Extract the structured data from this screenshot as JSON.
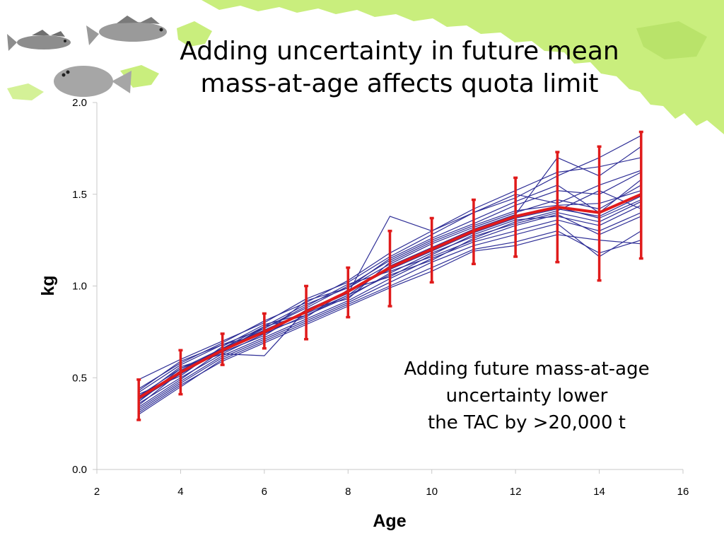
{
  "slide": {
    "title_line1": "Adding uncertainty in future mean",
    "title_line2": "mass-at-age affects quota limit",
    "annotation_lines": [
      "Adding future mass-at-age",
      "uncertainty lower",
      "the TAC by >20,000 t"
    ],
    "decorations": [
      "fish-pollock-icon",
      "fish-cod-icon",
      "flatfish-halibut-icon",
      "alaska-map-background"
    ]
  },
  "chart_data": {
    "type": "line",
    "xlabel": "Age",
    "ylabel": "kg",
    "xlim": [
      2,
      16
    ],
    "ylim": [
      0,
      2.0
    ],
    "xticks": [
      2,
      4,
      6,
      8,
      10,
      12,
      14,
      16
    ],
    "yticks": [
      "0.0",
      "0.5",
      "1.0",
      "1.5",
      "2.0"
    ],
    "grid": false,
    "legend": "none",
    "colors": {
      "mean": "#e01b1b",
      "realizations": "#2e2e96",
      "axis": "#c8c8c8"
    },
    "mean": {
      "x": [
        3,
        4,
        5,
        6,
        7,
        8,
        9,
        10,
        11,
        12,
        13,
        14,
        15
      ],
      "y": [
        0.39,
        0.53,
        0.65,
        0.75,
        0.86,
        0.97,
        1.1,
        1.2,
        1.3,
        1.38,
        1.43,
        1.4,
        1.5
      ],
      "lower": [
        0.27,
        0.41,
        0.57,
        0.66,
        0.71,
        0.83,
        0.89,
        1.02,
        1.12,
        1.16,
        1.13,
        1.03,
        1.15
      ],
      "upper": [
        0.49,
        0.65,
        0.74,
        0.85,
        1.0,
        1.1,
        1.3,
        1.37,
        1.47,
        1.59,
        1.73,
        1.76,
        1.84
      ]
    },
    "series": [
      {
        "x": [
          3,
          4,
          5,
          6,
          7,
          8,
          9,
          10,
          11,
          12,
          13,
          14,
          15
        ],
        "y": [
          0.4,
          0.55,
          0.66,
          0.78,
          0.9,
          0.99,
          1.12,
          1.23,
          1.32,
          1.4,
          1.47,
          1.42,
          1.55
        ]
      },
      {
        "x": [
          3,
          4,
          5,
          6,
          7,
          8,
          9,
          10,
          11,
          12,
          13,
          14,
          15
        ],
        "y": [
          0.36,
          0.5,
          0.63,
          0.74,
          0.84,
          0.94,
          1.07,
          1.18,
          1.27,
          1.34,
          1.4,
          1.35,
          1.46
        ]
      },
      {
        "x": [
          3,
          4,
          5,
          6,
          7,
          8,
          9,
          10,
          11,
          12,
          13,
          14,
          15
        ],
        "y": [
          0.42,
          0.57,
          0.68,
          0.77,
          0.88,
          1.0,
          1.14,
          1.25,
          1.34,
          1.44,
          1.52,
          1.5,
          1.62
        ]
      },
      {
        "x": [
          3,
          4,
          5,
          6,
          7,
          8,
          9,
          10,
          11,
          12,
          13,
          14,
          15
        ],
        "y": [
          0.33,
          0.48,
          0.62,
          0.72,
          0.82,
          0.92,
          1.04,
          1.15,
          1.24,
          1.3,
          1.36,
          1.3,
          1.4
        ]
      },
      {
        "x": [
          3,
          4,
          5,
          6,
          7,
          8,
          9,
          10,
          11,
          12,
          13,
          14,
          15
        ],
        "y": [
          0.49,
          0.6,
          0.7,
          0.8,
          0.93,
          1.02,
          1.16,
          1.28,
          1.4,
          1.48,
          1.6,
          1.7,
          1.82
        ]
      },
      {
        "x": [
          3,
          4,
          5,
          6,
          7,
          8,
          9,
          10,
          11,
          12,
          13,
          14,
          15
        ],
        "y": [
          0.3,
          0.45,
          0.6,
          0.7,
          0.8,
          0.9,
          1.0,
          1.1,
          1.2,
          1.24,
          1.3,
          1.18,
          1.25
        ]
      },
      {
        "x": [
          3,
          4,
          5,
          6,
          7,
          8,
          9,
          10,
          11,
          12,
          13,
          14,
          15
        ],
        "y": [
          0.38,
          0.52,
          0.65,
          0.76,
          0.86,
          0.96,
          1.38,
          1.3,
          1.4,
          1.5,
          1.45,
          1.55,
          1.63
        ]
      },
      {
        "x": [
          3,
          4,
          5,
          6,
          7,
          8,
          9,
          10,
          11,
          12,
          13,
          14,
          15
        ],
        "y": [
          0.35,
          0.53,
          0.64,
          0.73,
          0.87,
          0.97,
          1.09,
          1.19,
          1.29,
          1.37,
          1.42,
          1.38,
          1.49
        ]
      },
      {
        "x": [
          3,
          4,
          5,
          6,
          7,
          8,
          9,
          10,
          11,
          12,
          13,
          14,
          15
        ],
        "y": [
          0.41,
          0.51,
          0.67,
          0.79,
          0.85,
          0.95,
          1.11,
          1.21,
          1.31,
          1.39,
          1.7,
          1.6,
          1.76
        ]
      },
      {
        "x": [
          3,
          4,
          5,
          6,
          7,
          8,
          9,
          10,
          11,
          12,
          13,
          14,
          15
        ],
        "y": [
          0.37,
          0.54,
          0.66,
          0.75,
          0.83,
          0.98,
          1.05,
          1.17,
          1.28,
          1.36,
          1.38,
          1.33,
          1.44
        ]
      },
      {
        "x": [
          3,
          4,
          5,
          6,
          7,
          8,
          9,
          10,
          11,
          12,
          13,
          14,
          15
        ],
        "y": [
          0.32,
          0.47,
          0.61,
          0.71,
          0.81,
          0.91,
          1.02,
          1.13,
          1.22,
          1.28,
          1.34,
          1.16,
          1.3
        ]
      },
      {
        "x": [
          3,
          4,
          5,
          6,
          7,
          8,
          9,
          10,
          11,
          12,
          13,
          14,
          15
        ],
        "y": [
          0.44,
          0.58,
          0.69,
          0.81,
          0.91,
          1.03,
          1.18,
          1.3,
          1.42,
          1.52,
          1.62,
          1.65,
          1.7
        ]
      },
      {
        "x": [
          3,
          4,
          5,
          6,
          7,
          8,
          9,
          10,
          11,
          12,
          13,
          14,
          15
        ],
        "y": [
          0.39,
          0.56,
          0.63,
          0.62,
          0.87,
          0.93,
          1.13,
          1.24,
          1.33,
          1.41,
          1.44,
          1.45,
          1.52
        ]
      },
      {
        "x": [
          3,
          4,
          5,
          6,
          7,
          8,
          9,
          10,
          11,
          12,
          13,
          14,
          15
        ],
        "y": [
          0.34,
          0.49,
          0.65,
          0.77,
          0.89,
          1.01,
          1.08,
          1.16,
          1.25,
          1.33,
          1.39,
          1.28,
          1.38
        ]
      },
      {
        "x": [
          3,
          4,
          5,
          6,
          7,
          8,
          9,
          10,
          11,
          12,
          13,
          14,
          15
        ],
        "y": [
          0.43,
          0.59,
          0.68,
          0.74,
          0.92,
          0.99,
          1.15,
          1.26,
          1.36,
          1.46,
          1.55,
          1.4,
          1.58
        ]
      },
      {
        "x": [
          3,
          4,
          5,
          6,
          7,
          8,
          9,
          10,
          11,
          12,
          13,
          14,
          15
        ],
        "y": [
          0.31,
          0.46,
          0.59,
          0.69,
          0.79,
          0.89,
          0.99,
          1.08,
          1.19,
          1.22,
          1.28,
          1.25,
          1.23
        ]
      },
      {
        "x": [
          3,
          4,
          5,
          6,
          7,
          8,
          9,
          10,
          11,
          12,
          13,
          14,
          15
        ],
        "y": [
          0.4,
          0.52,
          0.66,
          0.76,
          0.86,
          0.97,
          1.1,
          1.21,
          1.3,
          1.38,
          1.43,
          1.37,
          1.47
        ]
      },
      {
        "x": [
          3,
          4,
          5,
          6,
          7,
          8,
          9,
          10,
          11,
          12,
          13,
          14,
          15
        ],
        "y": [
          0.37,
          0.55,
          0.64,
          0.78,
          0.84,
          0.95,
          1.06,
          1.14,
          1.26,
          1.35,
          1.41,
          1.52,
          1.42
        ]
      }
    ]
  }
}
